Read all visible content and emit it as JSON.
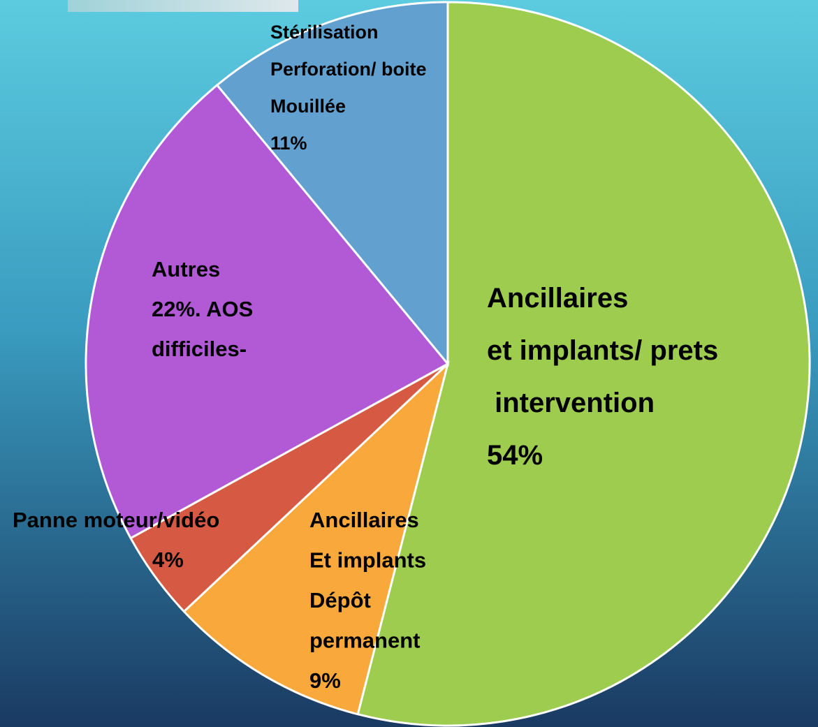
{
  "chart_data": {
    "type": "pie",
    "categories": [
      [
        "Ancillaires",
        "et implants/ prets",
        " intervention"
      ],
      [
        "Ancillaires",
        "Et implants",
        "Dépôt",
        "permanent"
      ],
      [
        "Panne moteur/vidéo"
      ],
      [
        "Autres",
        ". AOS",
        "difficiles-"
      ],
      [
        "Stérilisation",
        "Perforation/ boite",
        "Mouillée"
      ]
    ],
    "values": [
      54,
      9,
      4,
      22,
      11
    ],
    "value_labels": [
      "54%",
      "9%",
      "4%",
      "22%",
      "11%"
    ],
    "colors": [
      "#9dcc4f",
      "#f9a93b",
      "#d65a43",
      "#b25ad6",
      "#62a1cf"
    ]
  }
}
